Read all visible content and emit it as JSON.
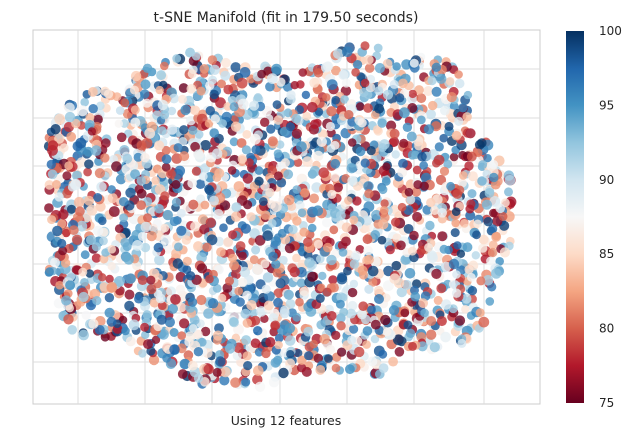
{
  "chart_data": {
    "type": "scatter",
    "title": "t-SNE Manifold (fit in 179.50 seconds)",
    "xlabel": "Using 12 features",
    "ylabel": "",
    "x_ticks_shown": false,
    "y_ticks_shown": false,
    "grid": true,
    "point_count_estimate": 2500,
    "colormap": "RdBu",
    "color_range": [
      75,
      100
    ],
    "colorbar_ticks": [
      "100",
      "95",
      "90",
      "85",
      "80",
      "75"
    ],
    "colorbar_tick_values": [
      100,
      95,
      90,
      85,
      80,
      75
    ],
    "colorbar_colors": [
      "#67001f",
      "#b2182b",
      "#d6604d",
      "#f4a582",
      "#fddbc7",
      "#f7f7f7",
      "#d1e5f0",
      "#92c5de",
      "#4393c3",
      "#2166ac",
      "#053061"
    ]
  }
}
